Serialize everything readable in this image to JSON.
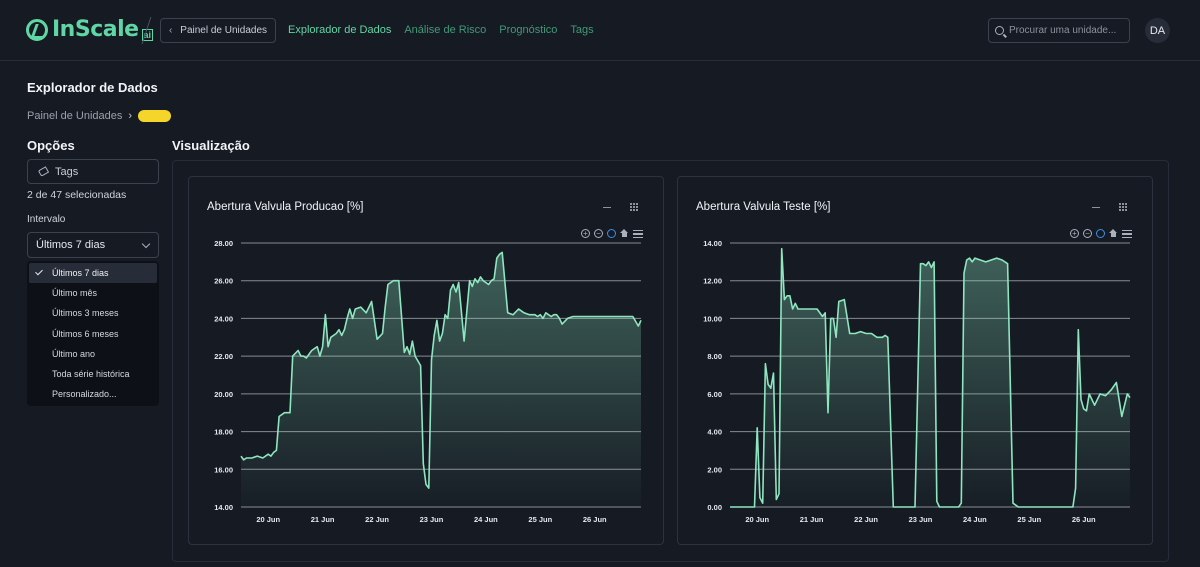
{
  "brand": {
    "name": "InScale",
    "suffix": "ai"
  },
  "nav": {
    "back_label": "Painel de Unidades",
    "links": [
      "Explorador de Dados",
      "Análise de Risco",
      "Prognóstico",
      "Tags"
    ],
    "active_index": 0,
    "search_placeholder": "Procurar uma unidade...",
    "avatar_initials": "DA"
  },
  "page": {
    "title": "Explorador de Dados",
    "breadcrumb": "Painel de Unidades"
  },
  "options": {
    "title": "Opções",
    "tags_label": "Tags",
    "selection_count": "2 de 47 selecionadas",
    "interval_label": "Intervalo",
    "interval_value": "Últimos 7 dias",
    "interval_options": [
      "Últimos 7 dias",
      "Último mês",
      "Últimos 3 meses",
      "Últimos 6 meses",
      "Último ano",
      "Toda série histórica",
      "Personalizado..."
    ],
    "selected_index": 0
  },
  "visualization": {
    "title": "Visualização",
    "colors": {
      "accent": "#5fd6a4",
      "line": "#8ee6bf",
      "grid": "#e6e9ee"
    }
  },
  "chart_data": [
    {
      "type": "area",
      "title": "Abertura Valvula Producao [%]",
      "x_ticks": [
        "20 Jun",
        "21 Jun",
        "22 Jun",
        "23 Jun",
        "24 Jun",
        "25 Jun",
        "26 Jun"
      ],
      "y_ticks": [
        "14.00",
        "16.00",
        "18.00",
        "20.00",
        "22.00",
        "24.00",
        "26.00",
        "28.00"
      ],
      "ylim": [
        14,
        28
      ],
      "xlim": [
        0,
        7.35
      ],
      "grid": true,
      "series": [
        {
          "x": [
            0.0,
            0.05,
            0.1,
            0.2,
            0.3,
            0.4,
            0.5,
            0.55,
            0.6,
            0.65,
            0.7,
            0.8,
            0.85,
            0.9,
            0.95,
            1.05,
            1.1,
            1.15,
            1.2,
            1.3,
            1.4,
            1.45,
            1.5,
            1.55,
            1.6,
            1.65,
            1.75,
            1.8,
            1.85,
            1.9,
            1.95,
            2.0,
            2.05,
            2.1,
            2.2,
            2.3,
            2.4,
            2.5,
            2.6,
            2.65,
            2.7,
            2.8,
            2.9,
            3.0,
            3.05,
            3.1,
            3.15,
            3.2,
            3.3,
            3.35,
            3.4,
            3.45,
            3.5,
            3.55,
            3.6,
            3.65,
            3.7,
            3.75,
            3.8,
            3.85,
            3.9,
            3.95,
            4.0,
            4.1,
            4.2,
            4.25,
            4.3,
            4.35,
            4.4,
            4.45,
            4.5,
            4.55,
            4.6,
            4.65,
            4.7,
            4.75,
            4.8,
            4.9,
            5.0,
            5.1,
            5.2,
            5.3,
            5.4,
            5.45,
            5.5,
            5.55,
            5.6,
            5.7,
            5.75,
            5.8,
            5.85,
            5.9,
            6.0,
            6.1,
            6.2,
            6.4,
            6.6,
            6.8,
            7.0,
            7.1,
            7.2,
            7.3,
            7.35
          ],
          "y": [
            16.7,
            16.5,
            16.6,
            16.6,
            16.7,
            16.6,
            16.8,
            16.7,
            16.9,
            17.0,
            18.8,
            19.0,
            19.0,
            19.0,
            22.0,
            22.3,
            22.0,
            22.0,
            21.9,
            22.3,
            22.5,
            22.0,
            22.5,
            24.2,
            22.5,
            23.0,
            23.2,
            23.4,
            23.1,
            23.4,
            24.0,
            24.5,
            24.0,
            24.5,
            24.6,
            24.3,
            24.9,
            22.9,
            23.2,
            24.6,
            25.8,
            26.0,
            26.0,
            22.2,
            22.5,
            22.1,
            22.8,
            22.0,
            21.5,
            16.3,
            15.2,
            15.0,
            21.8,
            23.1,
            23.9,
            22.8,
            23.2,
            24.2,
            24.0,
            25.5,
            25.8,
            25.4,
            25.9,
            22.8,
            26.0,
            25.7,
            26.1,
            25.9,
            26.2,
            26.0,
            25.9,
            25.8,
            26.0,
            26.1,
            27.2,
            27.4,
            27.5,
            24.3,
            24.2,
            24.5,
            24.3,
            24.2,
            24.2,
            24.1,
            24.2,
            24.0,
            24.3,
            24.1,
            24.2,
            24.2,
            24.0,
            23.7,
            24.0,
            24.1,
            24.1,
            24.1,
            24.1,
            24.1,
            24.1,
            24.1,
            24.1,
            23.6,
            23.9
          ]
        }
      ]
    },
    {
      "type": "area",
      "title": "Abertura Valvula Teste [%]",
      "x_ticks": [
        "20 Jun",
        "21 Jun",
        "22 Jun",
        "23 Jun",
        "24 Jun",
        "25 Jun",
        "26 Jun"
      ],
      "y_ticks": [
        "0.00",
        "2.00",
        "4.00",
        "6.00",
        "8.00",
        "10.00",
        "12.00",
        "14.00"
      ],
      "ylim": [
        0,
        14
      ],
      "xlim": [
        0,
        7.35
      ],
      "grid": true,
      "series": [
        {
          "x": [
            0.0,
            0.3,
            0.45,
            0.5,
            0.55,
            0.6,
            0.65,
            0.7,
            0.75,
            0.8,
            0.85,
            0.9,
            0.95,
            1.0,
            1.05,
            1.1,
            1.15,
            1.2,
            1.25,
            1.3,
            1.4,
            1.5,
            1.6,
            1.7,
            1.75,
            1.8,
            1.85,
            1.9,
            1.95,
            2.0,
            2.1,
            2.2,
            2.3,
            2.4,
            2.5,
            2.6,
            2.7,
            2.8,
            2.85,
            2.9,
            3.0,
            3.05,
            3.1,
            3.15,
            3.2,
            3.3,
            3.4,
            3.5,
            3.55,
            3.6,
            3.65,
            3.7,
            3.75,
            3.8,
            3.85,
            3.9,
            3.95,
            4.0,
            4.1,
            4.2,
            4.25,
            4.3,
            4.35,
            4.4,
            4.45,
            4.5,
            4.6,
            4.7,
            4.8,
            4.9,
            5.0,
            5.1,
            5.2,
            5.3,
            5.35,
            5.4,
            5.45,
            5.5,
            5.55,
            5.6,
            5.65,
            5.7,
            5.8,
            5.9,
            6.0,
            6.1,
            6.2,
            6.3,
            6.35,
            6.4,
            6.45,
            6.5,
            6.55,
            6.6,
            6.7,
            6.8,
            6.9,
            7.0,
            7.1,
            7.2,
            7.3,
            7.35
          ],
          "y": [
            0.0,
            0.0,
            0.0,
            4.2,
            0.5,
            0.2,
            7.6,
            6.5,
            6.3,
            7.1,
            0.4,
            0.7,
            13.7,
            11.0,
            11.2,
            11.2,
            10.5,
            10.8,
            10.5,
            10.5,
            10.5,
            10.5,
            10.5,
            10.1,
            10.3,
            5.0,
            10.0,
            10.0,
            9.0,
            10.9,
            11.0,
            9.2,
            9.2,
            9.3,
            9.2,
            9.2,
            9.0,
            9.0,
            9.1,
            9.0,
            0.0,
            0.0,
            0.0,
            0.0,
            0.0,
            0.0,
            0.0,
            12.9,
            12.9,
            12.8,
            13.0,
            12.7,
            13.0,
            0.3,
            0.0,
            0.0,
            0.0,
            0.0,
            0.0,
            0.0,
            0.2,
            12.4,
            13.1,
            13.2,
            13.0,
            13.2,
            13.1,
            13.0,
            13.1,
            13.2,
            13.1,
            12.9,
            0.2,
            0.0,
            0.0,
            0.0,
            0.0,
            0.0,
            0.0,
            0.0,
            0.0,
            0.0,
            0.0,
            0.0,
            0.0,
            0.0,
            0.0,
            0.0,
            1.0,
            9.4,
            5.7,
            5.2,
            5.1,
            6.0,
            5.4,
            6.0,
            5.9,
            6.2,
            6.6,
            4.8,
            6.0,
            5.8
          ]
        }
      ]
    }
  ]
}
